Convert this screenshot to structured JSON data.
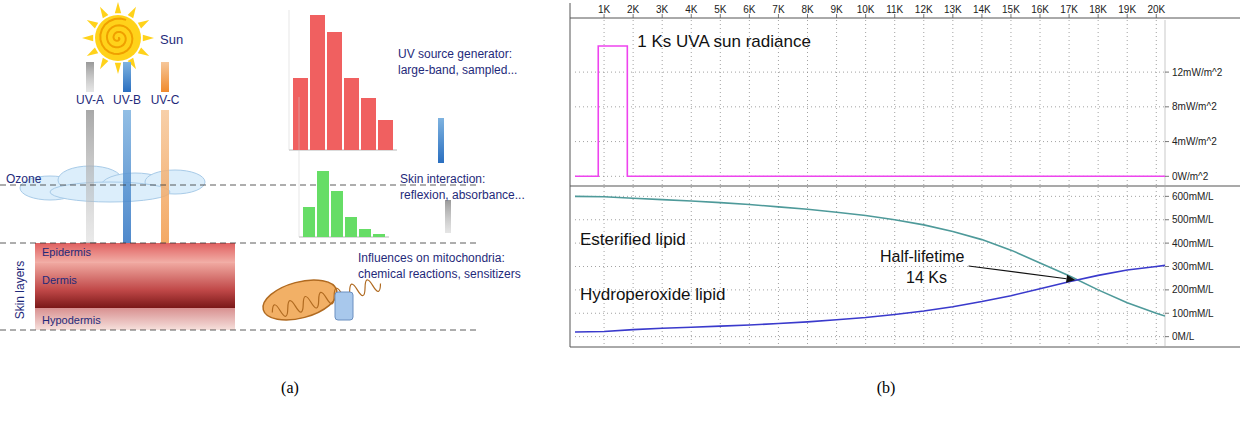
{
  "panel_labels": [
    "(a)",
    "(b)"
  ],
  "diagram": {
    "sun": "Sun",
    "rays": [
      "UV-A",
      "UV-B",
      "UV-C"
    ],
    "ozone": "Ozone",
    "skin_layers": {
      "title": "Skin layers",
      "layers": [
        "Epidermis",
        "Dermis",
        "Hypodermis"
      ]
    },
    "steps": [
      {
        "lines": [
          "UV source generator:",
          "large-band, sampled..."
        ]
      },
      {
        "lines": [
          "Skin interaction:",
          "reflexion, absorbance..."
        ]
      },
      {
        "lines": [
          "Influences on mitochondria:",
          "chemical reactions, sensitizers"
        ]
      }
    ]
  },
  "chart_data": [
    {
      "type": "line",
      "x": [
        0,
        800,
        800,
        1800,
        1800,
        20300
      ],
      "series": [
        {
          "name": "1 Ks UVA sun radiance",
          "color": "#ee44ee",
          "values": [
            0,
            0,
            15,
            15,
            0,
            0
          ]
        }
      ],
      "xlim": [
        0,
        20300
      ],
      "xticks": [
        {
          "value": 1000,
          "label": "1K"
        },
        {
          "value": 2000,
          "label": "2K"
        },
        {
          "value": 3000,
          "label": "3K"
        },
        {
          "value": 4000,
          "label": "4K"
        },
        {
          "value": 5000,
          "label": "5K"
        },
        {
          "value": 6000,
          "label": "6K"
        },
        {
          "value": 7000,
          "label": "7K"
        },
        {
          "value": 8000,
          "label": "8K"
        },
        {
          "value": 9000,
          "label": "9K"
        },
        {
          "value": 10000,
          "label": "10K"
        },
        {
          "value": 11000,
          "label": "11K"
        },
        {
          "value": 12000,
          "label": "12K"
        },
        {
          "value": 13000,
          "label": "13K"
        },
        {
          "value": 14000,
          "label": "14K"
        },
        {
          "value": 15000,
          "label": "15K"
        },
        {
          "value": 16000,
          "label": "16K"
        },
        {
          "value": 17000,
          "label": "17K"
        },
        {
          "value": 18000,
          "label": "18K"
        },
        {
          "value": 19000,
          "label": "19K"
        },
        {
          "value": 20000,
          "label": "20K"
        }
      ],
      "ylim": [
        -1,
        18
      ],
      "yticks": [
        {
          "value": 0,
          "label": "0W/m^2"
        },
        {
          "value": 4,
          "label": "4mW/m^2"
        },
        {
          "value": 8,
          "label": "8mW/m^2"
        },
        {
          "value": 12,
          "label": "12mW/m^2"
        }
      ],
      "grid": true,
      "tick_labels": true
    },
    {
      "type": "line",
      "x": [
        0,
        1000,
        2000,
        3000,
        4000,
        5000,
        6000,
        7000,
        8000,
        9000,
        10000,
        11000,
        12000,
        13000,
        14000,
        15000,
        16000,
        17000,
        18000,
        19000,
        20000,
        20300
      ],
      "series": [
        {
          "name": "Esterified lipid",
          "color": "#4e9a9a",
          "values": [
            600,
            598,
            592,
            586,
            580,
            573,
            565,
            555,
            545,
            532,
            518,
            500,
            478,
            450,
            415,
            370,
            315,
            260,
            200,
            145,
            100,
            88
          ]
        },
        {
          "name": "Hydroperoxide lipid",
          "color": "#3a3acc",
          "values": [
            20,
            22,
            30,
            36,
            40,
            45,
            50,
            56,
            63,
            72,
            82,
            95,
            110,
            128,
            150,
            175,
            205,
            235,
            262,
            285,
            300,
            305
          ]
        }
      ],
      "annotations": [
        {
          "text": "Half-lifetime 14 Ks"
        }
      ],
      "xlim": [
        0,
        20300
      ],
      "xticks": [
        1000,
        2000,
        3000,
        4000,
        5000,
        6000,
        7000,
        8000,
        9000,
        10000,
        11000,
        12000,
        13000,
        14000,
        15000,
        16000,
        17000,
        18000,
        19000,
        20000
      ],
      "ylim": [
        -40,
        640
      ],
      "yticks": [
        {
          "value": 0,
          "label": "0M/L"
        },
        {
          "value": 100,
          "label": "100mM/L"
        },
        {
          "value": 200,
          "label": "200mM/L"
        },
        {
          "value": 300,
          "label": "300mM/L"
        },
        {
          "value": 400,
          "label": "400mM/L"
        },
        {
          "value": 500,
          "label": "500mM/L"
        },
        {
          "value": 600,
          "label": "600mM/L"
        }
      ],
      "grid": true,
      "tick_labels": "y"
    }
  ]
}
